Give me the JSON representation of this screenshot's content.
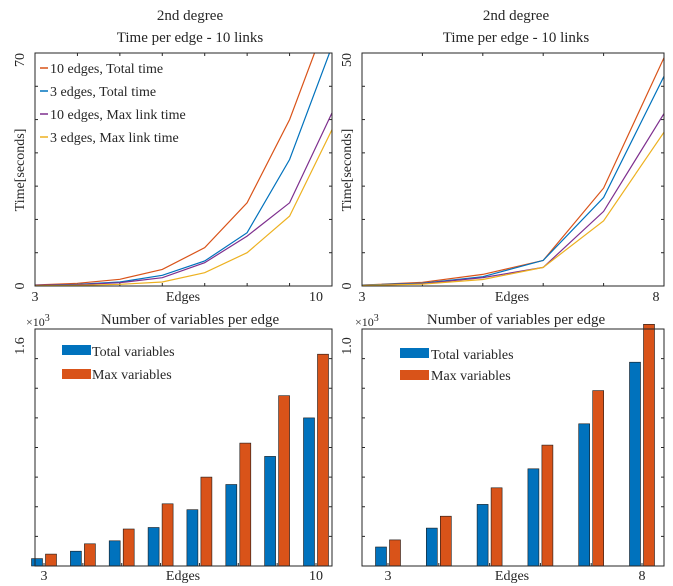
{
  "colors": {
    "total10": "#D95319",
    "total3": "#0072BD",
    "max10": "#7E2F8E",
    "max3": "#EDB120",
    "bar_total": "#0072BD",
    "bar_max": "#D95319"
  },
  "chart_data": [
    {
      "type": "line",
      "title": "2nd degree",
      "subtitle": "Time per edge - 10 links",
      "xlabel": "Edges",
      "ylabel": "Time[seconds]",
      "xlim": [
        3,
        10
      ],
      "ylim": [
        0,
        70
      ],
      "x_ticks": [
        "3",
        "10"
      ],
      "y_ticks": [
        "0",
        "70"
      ],
      "legend_position": "top-left",
      "x": [
        3,
        4,
        5,
        6,
        7,
        8,
        9,
        10
      ],
      "series": [
        {
          "name": "10 edges, Total time",
          "color_key": "total10",
          "values": [
            0.3,
            0.8,
            2.0,
            5.0,
            11.5,
            25.0,
            50.0,
            84.0
          ]
        },
        {
          "name": "3 edges, Total time",
          "color_key": "total3",
          "values": [
            0.2,
            0.5,
            1.2,
            3.2,
            7.5,
            16.0,
            38.0,
            72.0
          ]
        },
        {
          "name": "10 edges, Max link time",
          "color_key": "max10",
          "values": [
            0.2,
            0.4,
            1.0,
            2.5,
            7.0,
            15.0,
            25.0,
            52.0
          ]
        },
        {
          "name": "3 edges, Max link time",
          "color_key": "max3",
          "values": [
            0.1,
            0.2,
            0.5,
            1.2,
            4.0,
            10.0,
            21.0,
            47.0
          ]
        }
      ]
    },
    {
      "type": "line",
      "title": "2nd degree",
      "subtitle": "Time per edge - 10 links",
      "xlabel": "Edges",
      "ylabel": "Time[seconds]",
      "xlim": [
        3,
        8
      ],
      "ylim": [
        0,
        50
      ],
      "x_ticks": [
        "3",
        "8"
      ],
      "y_ticks": [
        "0",
        "50"
      ],
      "x": [
        3,
        4,
        5,
        6,
        7,
        8
      ],
      "series": [
        {
          "color_key": "total10",
          "values": [
            0.2,
            0.8,
            2.5,
            5.5,
            21.0,
            49.0
          ]
        },
        {
          "color_key": "total3",
          "values": [
            0.2,
            0.6,
            2.0,
            5.5,
            19.0,
            45.0
          ]
        },
        {
          "color_key": "max10",
          "values": [
            0.1,
            0.5,
            1.8,
            4.0,
            16.0,
            37.0
          ]
        },
        {
          "color_key": "max3",
          "values": [
            0.1,
            0.4,
            1.4,
            4.0,
            14.0,
            33.0
          ]
        }
      ]
    },
    {
      "type": "bar",
      "title": "Number of variables per edge",
      "multiplier": "×10",
      "multiplier_exp": "3",
      "xlabel": "Edges",
      "ylim": [
        0,
        1.6
      ],
      "y_ticks": [
        "1.6"
      ],
      "x_tick_labels": [
        "3",
        "10"
      ],
      "x_tick_categories": [
        3,
        10
      ],
      "legend_position": "top-left",
      "categories": [
        3,
        4,
        5,
        6,
        7,
        8,
        9,
        10
      ],
      "series": [
        {
          "name": "Total variables",
          "color_key": "bar_total",
          "values": [
            0.05,
            0.1,
            0.17,
            0.26,
            0.38,
            0.55,
            0.74,
            1.0
          ]
        },
        {
          "name": "Max variables",
          "color_key": "bar_max",
          "values": [
            0.08,
            0.15,
            0.25,
            0.42,
            0.6,
            0.83,
            1.15,
            1.43
          ]
        }
      ]
    },
    {
      "type": "bar",
      "title": "Number of variables per edge",
      "multiplier": "×10",
      "multiplier_exp": "3",
      "xlabel": "Edges",
      "ylim": [
        0,
        1.0
      ],
      "y_ticks": [
        "1.0"
      ],
      "x_tick_labels": [
        "3",
        "8"
      ],
      "x_tick_categories": [
        3,
        8
      ],
      "categories": [
        3,
        4,
        5,
        6,
        7,
        8
      ],
      "series": [
        {
          "name": "Total variables",
          "color_key": "bar_total",
          "values": [
            0.08,
            0.16,
            0.26,
            0.41,
            0.6,
            0.86
          ]
        },
        {
          "name": "Max variables",
          "color_key": "bar_max",
          "values": [
            0.11,
            0.21,
            0.33,
            0.51,
            0.74,
            1.02
          ]
        }
      ]
    }
  ]
}
